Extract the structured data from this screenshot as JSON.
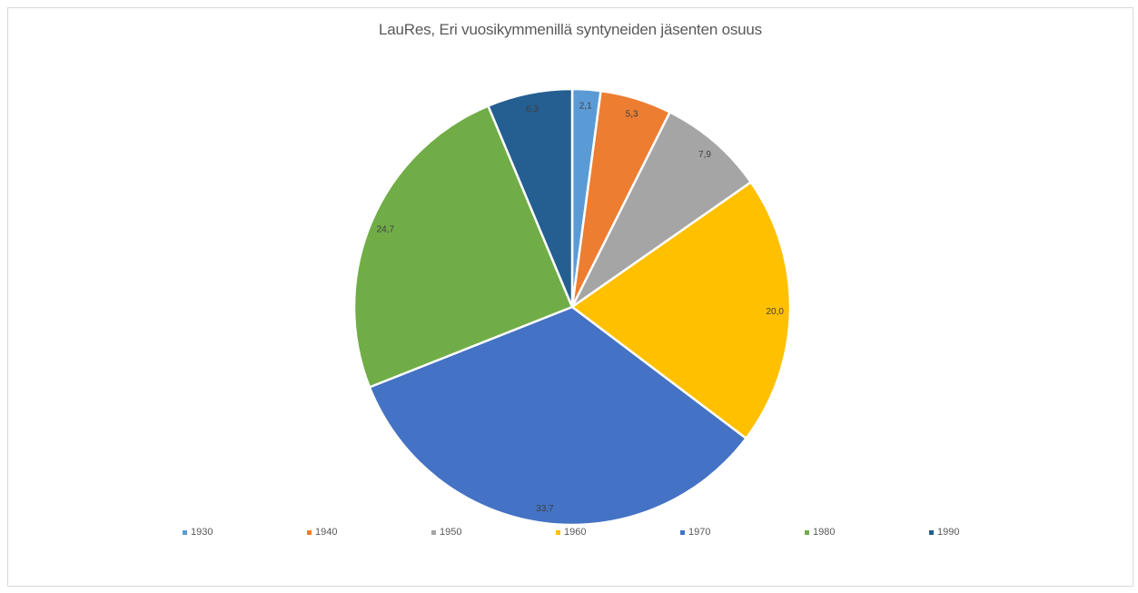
{
  "chart_data": {
    "type": "pie",
    "title": "LauRes, Eri vuosikymmenillä syntyneiden jäsenten osuus",
    "legend_position": "bottom",
    "categories": [
      "1930",
      "1940",
      "1950",
      "1960",
      "1970",
      "1980",
      "1990"
    ],
    "values": [
      2.1,
      5.3,
      7.9,
      20.0,
      33.7,
      24.7,
      6.3
    ],
    "data_labels": [
      "2,1",
      "5,3",
      "7,9",
      "20,0",
      "33,7",
      "24,7",
      "6,3"
    ],
    "colors": [
      "#5B9BD5",
      "#ED7D31",
      "#A5A5A5",
      "#FFC000",
      "#4472C4",
      "#70AD47",
      "#255E91"
    ],
    "start_angle_deg": 0,
    "direction": "clockwise"
  }
}
